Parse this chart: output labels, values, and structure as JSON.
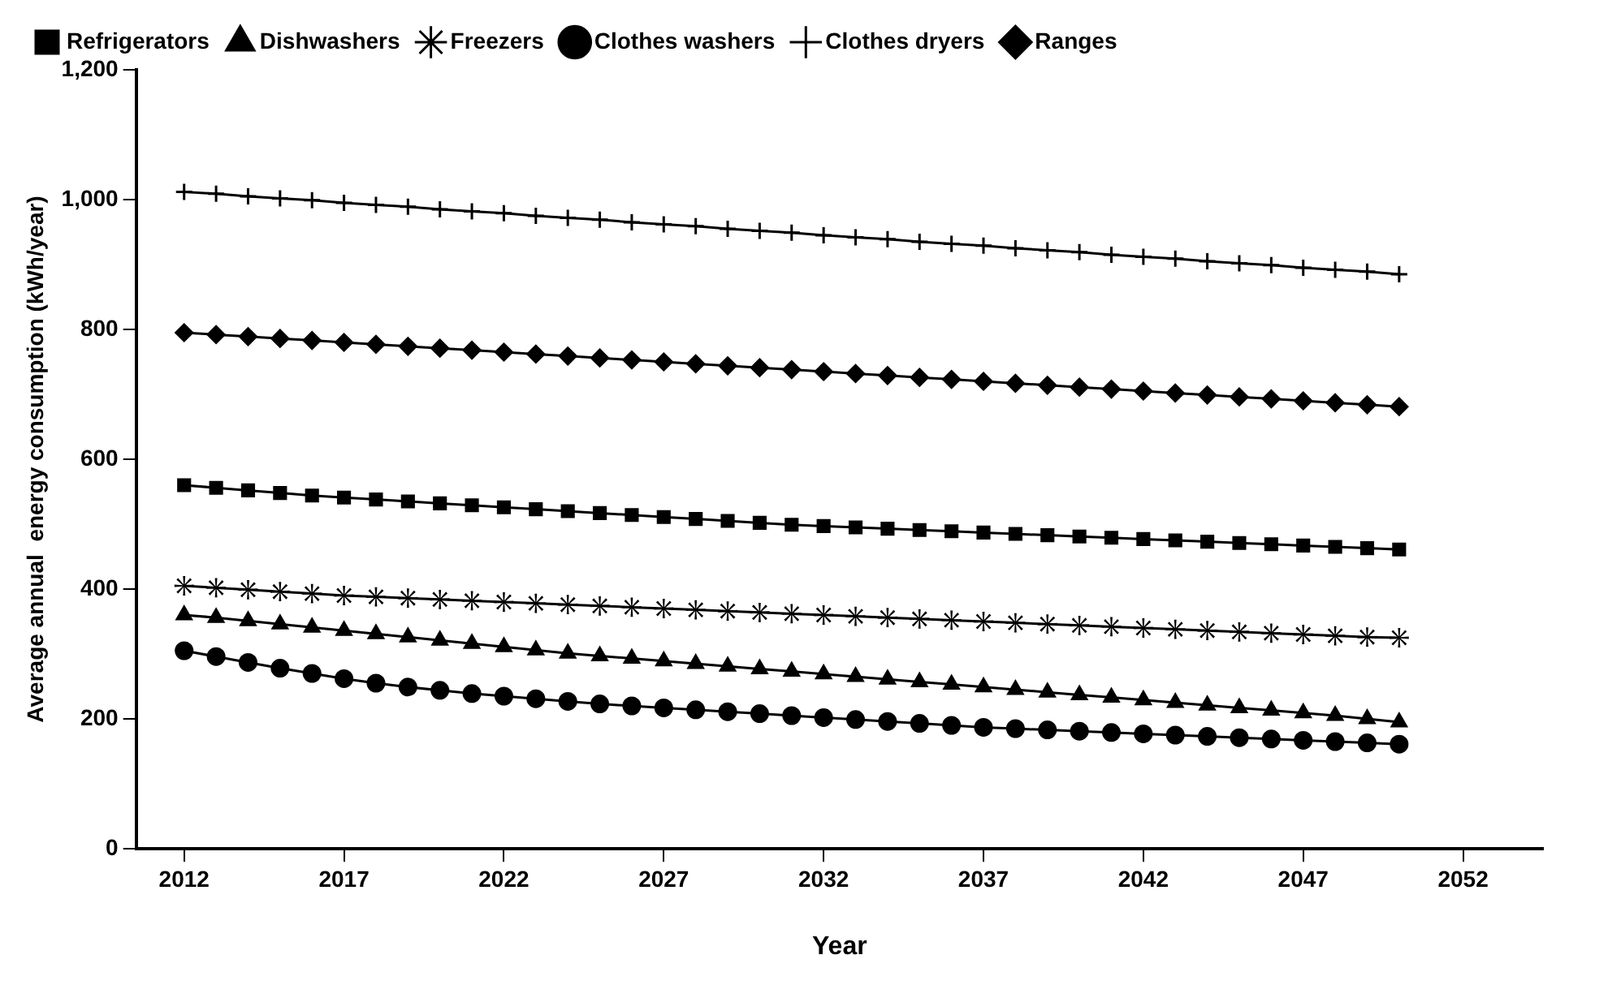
{
  "chart_data": {
    "type": "line",
    "xlabel": "Year",
    "ylabel": "Average annual  energy consumption (kWh/year)",
    "x": [
      2012,
      2013,
      2014,
      2015,
      2016,
      2017,
      2018,
      2019,
      2020,
      2021,
      2022,
      2023,
      2024,
      2025,
      2026,
      2027,
      2028,
      2029,
      2030,
      2031,
      2032,
      2033,
      2034,
      2035,
      2036,
      2037,
      2038,
      2039,
      2040,
      2041,
      2042,
      2043,
      2044,
      2045,
      2046,
      2047,
      2048,
      2049,
      2050
    ],
    "series": [
      {
        "name": "Refrigerators",
        "color": "#000000",
        "marker": "square",
        "values": [
          560,
          556,
          552,
          548,
          544,
          541,
          538,
          535,
          532,
          529,
          526,
          523,
          520,
          517,
          514,
          511,
          508,
          505,
          502,
          499,
          497,
          495,
          493,
          491,
          489,
          487,
          485,
          483,
          481,
          479,
          477,
          475,
          473,
          471,
          469,
          467,
          465,
          463,
          461
        ]
      },
      {
        "name": "Dishwashers",
        "color": "#000000",
        "marker": "triangle",
        "values": [
          360,
          356,
          351,
          346,
          341,
          336,
          331,
          326,
          321,
          316,
          311,
          306,
          301,
          297,
          293,
          289,
          285,
          281,
          277,
          273,
          269,
          265,
          261,
          257,
          253,
          249,
          245,
          241,
          237,
          233,
          229,
          225,
          221,
          217,
          213,
          209,
          205,
          200,
          195
        ]
      },
      {
        "name": "Freezers",
        "color": "#000000",
        "marker": "star",
        "values": [
          405,
          402,
          399,
          396,
          393,
          390,
          388,
          386,
          384,
          382,
          380,
          378,
          376,
          374,
          372,
          370,
          368,
          366,
          364,
          362,
          360,
          358,
          356,
          354,
          352,
          350,
          348,
          346,
          344,
          342,
          340,
          338,
          336,
          334,
          332,
          330,
          328,
          326,
          325
        ]
      },
      {
        "name": "Clothes washers",
        "color": "#000000",
        "marker": "circle",
        "values": [
          305,
          296,
          287,
          278,
          270,
          262,
          255,
          249,
          244,
          239,
          235,
          231,
          227,
          223,
          220,
          217,
          214,
          211,
          208,
          205,
          202,
          199,
          196,
          193,
          190,
          187,
          185,
          183,
          181,
          179,
          177,
          175,
          173,
          171,
          169,
          167,
          165,
          163,
          161
        ]
      },
      {
        "name": "Clothes dryers",
        "color": "#000000",
        "marker": "cross",
        "values": [
          1012,
          1009,
          1005,
          1002,
          999,
          995,
          992,
          989,
          985,
          982,
          979,
          975,
          972,
          969,
          965,
          962,
          959,
          955,
          952,
          949,
          945,
          942,
          939,
          935,
          932,
          929,
          925,
          922,
          919,
          915,
          912,
          909,
          905,
          902,
          899,
          895,
          892,
          889,
          885
        ]
      },
      {
        "name": "Ranges",
        "color": "#000000",
        "marker": "diamond",
        "values": [
          795,
          792,
          789,
          786,
          783,
          780,
          777,
          774,
          771,
          768,
          765,
          762,
          759,
          756,
          753,
          750,
          747,
          744,
          741,
          738,
          735,
          732,
          729,
          726,
          723,
          720,
          717,
          714,
          711,
          708,
          705,
          702,
          699,
          696,
          693,
          690,
          687,
          684,
          681
        ]
      }
    ],
    "xlim": [
      2010.5,
      2054.5
    ],
    "xticks": [
      2012,
      2017,
      2022,
      2027,
      2032,
      2037,
      2042,
      2047,
      2052
    ],
    "ylim": [
      0,
      1200
    ],
    "yticks": [
      0,
      200,
      400,
      600,
      800,
      {
        "value": 1000,
        "label": "1,000"
      },
      {
        "value": 1200,
        "label": "1,200"
      }
    ],
    "grid": false,
    "legend": "top left",
    "line_style": "solid"
  }
}
